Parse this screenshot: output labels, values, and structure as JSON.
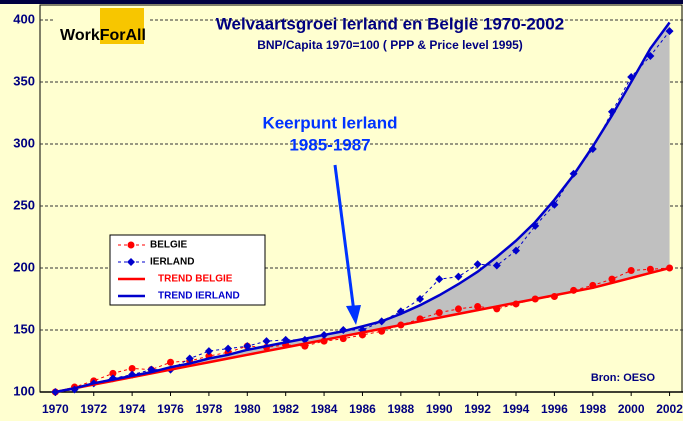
{
  "chart_data": {
    "type": "line",
    "title": "Welvaartsgroei Ierland en België 1970-2002",
    "subtitle": "BNP/Capita 1970=100 ( PPP & Price level 1995)",
    "logo": "WorkForAll",
    "source": "Bron: OESO",
    "annotation": [
      "Keerpunt Ierland",
      "1985-1987"
    ],
    "x": [
      1970,
      1971,
      1972,
      1973,
      1974,
      1975,
      1976,
      1977,
      1978,
      1979,
      1980,
      1981,
      1982,
      1983,
      1984,
      1985,
      1986,
      1987,
      1988,
      1989,
      1990,
      1991,
      1992,
      1993,
      1994,
      1995,
      1996,
      1997,
      1998,
      1999,
      2000,
      2001,
      2002
    ],
    "series": [
      {
        "name": "BELGIE",
        "color": "#ff0000",
        "marker": "circle",
        "values": [
          100,
          104,
          109,
          115,
          119,
          118,
          124,
          125,
          129,
          132,
          137,
          136,
          138,
          137,
          141,
          143,
          146,
          149,
          154,
          159,
          164,
          167,
          169,
          167,
          171,
          175,
          177,
          182,
          186,
          191,
          198,
          199,
          200
        ]
      },
      {
        "name": "IERLAND",
        "color": "#0000cc",
        "marker": "diamond",
        "values": [
          100,
          102,
          107,
          111,
          114,
          118,
          118,
          127,
          133,
          135,
          137,
          141,
          142,
          142,
          146,
          150,
          150,
          157,
          165,
          175,
          191,
          193,
          203,
          202,
          214,
          234,
          251,
          276,
          296,
          326,
          354,
          371,
          391
        ]
      },
      {
        "name": "TREND BELGIE",
        "color": "#ff0000",
        "marker": null,
        "values": [
          100,
          103,
          106,
          109,
          112,
          115,
          118,
          121,
          124,
          127,
          130,
          133,
          136,
          139,
          142,
          145,
          148,
          151,
          154,
          157,
          160,
          163,
          166,
          169,
          172,
          175,
          178,
          181,
          184,
          188,
          192,
          196,
          200
        ]
      },
      {
        "name": "TREND IERLAND",
        "color": "#0000cc",
        "marker": null,
        "values": [
          100,
          103,
          107,
          110,
          113,
          116,
          120,
          123,
          127,
          130,
          134,
          137,
          140,
          143,
          146,
          149,
          153,
          157,
          163,
          170,
          178,
          187,
          197,
          209,
          222,
          237,
          255,
          275,
          298,
          323,
          350,
          377,
          398
        ]
      }
    ],
    "xlim": [
      1969.2,
      2002.7
    ],
    "xticks": [
      1970,
      1972,
      1974,
      1976,
      1978,
      1980,
      1982,
      1984,
      1986,
      1988,
      1990,
      1992,
      1994,
      1996,
      1998,
      2000,
      2002
    ],
    "ylim": [
      100,
      400
    ],
    "yticks": [
      100,
      150,
      200,
      250,
      300,
      350,
      400
    ],
    "grid": true
  }
}
